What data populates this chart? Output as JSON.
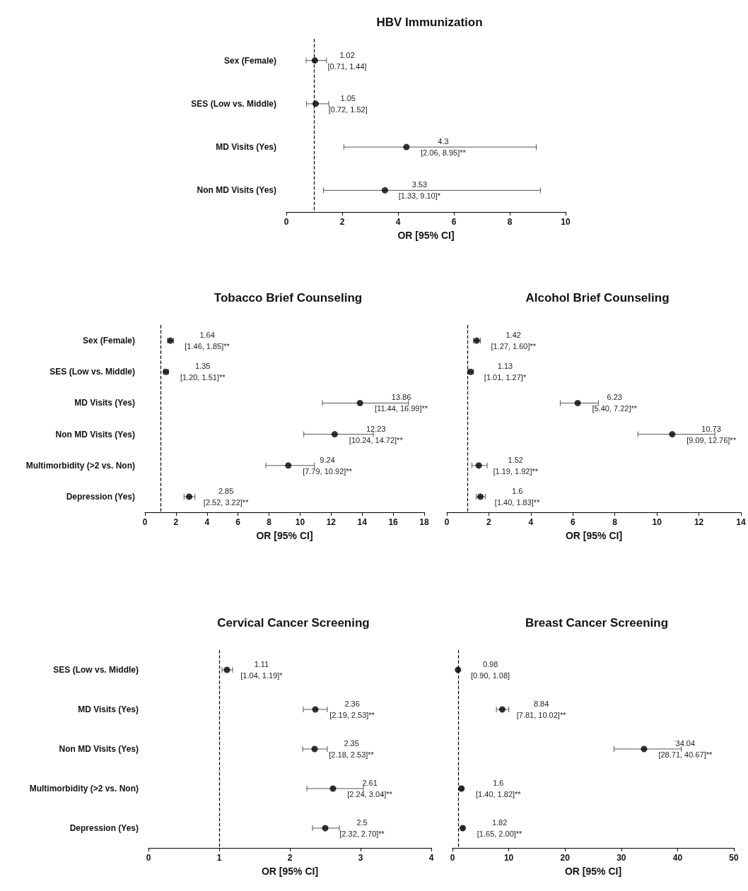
{
  "chart_data": [
    {
      "type": "scatter",
      "title": "HBV Immunization",
      "xlabel": "OR [95% CI]",
      "categories": [
        "Sex (Female)",
        "SES (Low vs. Middle)",
        "MD Visits (Yes)",
        "Non MD Visits (Yes)"
      ],
      "series": [
        {
          "color": "#000000",
          "values": [
            1.02,
            1.05,
            4.3,
            3.53
          ],
          "errors": [
            [
              0.71,
              1.44
            ],
            [
              0.72,
              1.52
            ],
            [
              2.06,
              8.95
            ],
            [
              1.33,
              9.1
            ]
          ],
          "value_labels": [
            "1.02\n[0.71, 1.44]",
            "1.05\n[0.72, 1.52]",
            "4.3\n[2.06, 8.95]**",
            "3.53\n[1.33, 9.10]*"
          ]
        }
      ],
      "xlim": [
        0,
        10
      ],
      "xticks": [
        0,
        2,
        4,
        6,
        8,
        10
      ],
      "ref_lines": [
        {
          "axis": "x",
          "value": 1,
          "line_style": "dashed",
          "color": "#000000"
        }
      ],
      "grid": false,
      "marker": "circle",
      "orientation": "horizontal"
    },
    {
      "type": "scatter",
      "title": "Tobacco Brief Counseling",
      "xlabel": "OR [95% CI]",
      "categories": [
        "Sex (Female)",
        "SES (Low vs. Middle)",
        "MD Visits (Yes)",
        "Non MD Visits (Yes)",
        "Multimorbidity (>2 vs. Non)",
        "Depression (Yes)"
      ],
      "series": [
        {
          "color": "#000000",
          "values": [
            1.64,
            1.35,
            13.86,
            12.23,
            9.24,
            2.85
          ],
          "errors": [
            [
              1.46,
              1.85
            ],
            [
              1.2,
              1.51
            ],
            [
              11.44,
              16.99
            ],
            [
              10.24,
              14.72
            ],
            [
              7.79,
              10.92
            ],
            [
              2.52,
              3.22
            ]
          ],
          "value_labels": [
            "1.64\n[1.46, 1.85]**",
            "1.35\n[1.20, 1.51]**",
            "13.86\n[11.44, 16.99]**",
            "12.23\n[10.24, 14.72]**",
            "9.24\n[7.79, 10.92]**",
            "2.85\n[2.52, 3.22]**"
          ]
        }
      ],
      "xlim": [
        0,
        18
      ],
      "xticks": [
        0,
        2,
        4,
        6,
        8,
        10,
        12,
        14,
        16,
        18
      ],
      "ref_lines": [
        {
          "axis": "x",
          "value": 1,
          "line_style": "dashed",
          "color": "#000000"
        }
      ],
      "grid": false,
      "marker": "circle",
      "orientation": "horizontal"
    },
    {
      "type": "scatter",
      "title": "Alcohol Brief Counseling",
      "xlabel": "OR [95% CI]",
      "categories": [
        null,
        null,
        null,
        null,
        null,
        null
      ],
      "series": [
        {
          "color": "#000000",
          "values": [
            1.42,
            1.13,
            6.23,
            10.73,
            1.52,
            1.6
          ],
          "errors": [
            [
              1.27,
              1.6
            ],
            [
              1.01,
              1.27
            ],
            [
              5.4,
              7.22
            ],
            [
              9.09,
              12.76
            ],
            [
              1.19,
              1.92
            ],
            [
              1.4,
              1.83
            ]
          ],
          "value_labels": [
            "1.42\n[1.27, 1.60]**",
            "1.13\n[1.01, 1.27]*",
            "6.23\n[5.40, 7.22]**",
            "10.73\n[9.09, 12.76]**",
            "1.52\n[1.19, 1.92]**",
            "1.6\n[1.40, 1.83]**"
          ]
        }
      ],
      "xlim": [
        0,
        14
      ],
      "xticks": [
        0,
        2,
        4,
        6,
        8,
        10,
        12,
        14
      ],
      "ref_lines": [
        {
          "axis": "x",
          "value": 1,
          "line_style": "dashed",
          "color": "#000000"
        }
      ],
      "grid": false,
      "marker": "circle",
      "tick_labels": "x",
      "orientation": "horizontal"
    },
    {
      "type": "scatter",
      "title": "Cervical Cancer Screening",
      "xlabel": "OR [95% CI]",
      "categories": [
        "SES (Low vs. Middle)",
        "MD Visits (Yes)",
        "Non MD Visits (Yes)",
        "Multimorbidity (>2 vs. Non)",
        "Depression (Yes)"
      ],
      "series": [
        {
          "color": "#000000",
          "values": [
            1.11,
            2.36,
            2.35,
            2.61,
            2.5
          ],
          "errors": [
            [
              1.04,
              1.19
            ],
            [
              2.19,
              2.53
            ],
            [
              2.18,
              2.53
            ],
            [
              2.24,
              3.04
            ],
            [
              2.32,
              2.7
            ]
          ],
          "value_labels": [
            "1.11\n[1.04, 1.19]*",
            "2.36\n[2.19, 2.53]**",
            "2.35\n[2.18, 2.53]**",
            "2.61\n[2.24, 3.04]**",
            "2.5\n[2.32, 2.70]**"
          ]
        }
      ],
      "xlim": [
        0,
        4
      ],
      "xticks": [
        0,
        1,
        2,
        3,
        4
      ],
      "ref_lines": [
        {
          "axis": "x",
          "value": 1,
          "line_style": "dashed",
          "color": "#000000"
        }
      ],
      "grid": false,
      "marker": "circle",
      "orientation": "horizontal"
    },
    {
      "type": "scatter",
      "title": "Breast Cancer Screening",
      "xlabel": "OR [95% CI]",
      "categories": [
        null,
        null,
        null,
        null,
        null
      ],
      "series": [
        {
          "color": "#000000",
          "values": [
            0.98,
            8.84,
            34.04,
            1.6,
            1.82
          ],
          "errors": [
            [
              0.9,
              1.08
            ],
            [
              7.81,
              10.02
            ],
            [
              28.71,
              40.67
            ],
            [
              1.4,
              1.82
            ],
            [
              1.65,
              2.0
            ]
          ],
          "value_labels": [
            "0.98\n[0.90, 1.08]",
            "8.84\n[7.81, 10.02]**",
            "34.04\n[28.71, 40.67]**",
            "1.6\n[1.40, 1.82]**",
            "1.82\n[1.65, 2.00]**"
          ]
        }
      ],
      "xlim": [
        0,
        50
      ],
      "xticks": [
        0,
        10,
        20,
        30,
        40,
        50
      ],
      "ref_lines": [
        {
          "axis": "x",
          "value": 1,
          "line_style": "dashed",
          "color": "#000000"
        }
      ],
      "grid": false,
      "marker": "circle",
      "tick_labels": "x",
      "orientation": "horizontal"
    }
  ]
}
